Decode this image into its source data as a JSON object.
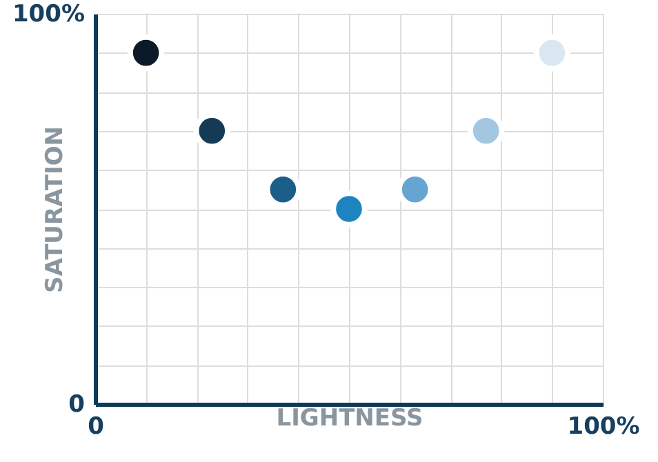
{
  "chart_data": {
    "type": "scatter",
    "xlabel": "LIGHTNESS",
    "ylabel": "SATURATION",
    "x": [
      10,
      23,
      37,
      50,
      63,
      77,
      90
    ],
    "values": [
      90,
      70,
      55,
      50,
      55,
      70,
      90
    ],
    "colors": [
      "#0b1a28",
      "#143a56",
      "#1c5e8a",
      "#1e84c0",
      "#66a5d1",
      "#a3c6e1",
      "#d8e7f2"
    ],
    "xlim": [
      0,
      100
    ],
    "ylim": [
      0,
      100
    ],
    "xticks": [
      {
        "value": 0,
        "label": "0"
      },
      {
        "value": 10,
        "label": null
      },
      {
        "value": 20,
        "label": null
      },
      {
        "value": 30,
        "label": null
      },
      {
        "value": 40,
        "label": null
      },
      {
        "value": 50,
        "label": null
      },
      {
        "value": 60,
        "label": null
      },
      {
        "value": 70,
        "label": null
      },
      {
        "value": 80,
        "label": null
      },
      {
        "value": 90,
        "label": null
      },
      {
        "value": 100,
        "label": "100%"
      }
    ],
    "yticks": [
      {
        "value": 0,
        "label": "0"
      },
      {
        "value": 10,
        "label": null
      },
      {
        "value": 20,
        "label": null
      },
      {
        "value": 30,
        "label": null
      },
      {
        "value": 40,
        "label": null
      },
      {
        "value": 50,
        "label": null
      },
      {
        "value": 60,
        "label": null
      },
      {
        "value": 70,
        "label": null
      },
      {
        "value": 80,
        "label": null
      },
      {
        "value": 90,
        "label": null
      },
      {
        "value": 100,
        "label": "100%"
      }
    ],
    "grid": true,
    "marker": "circle"
  }
}
